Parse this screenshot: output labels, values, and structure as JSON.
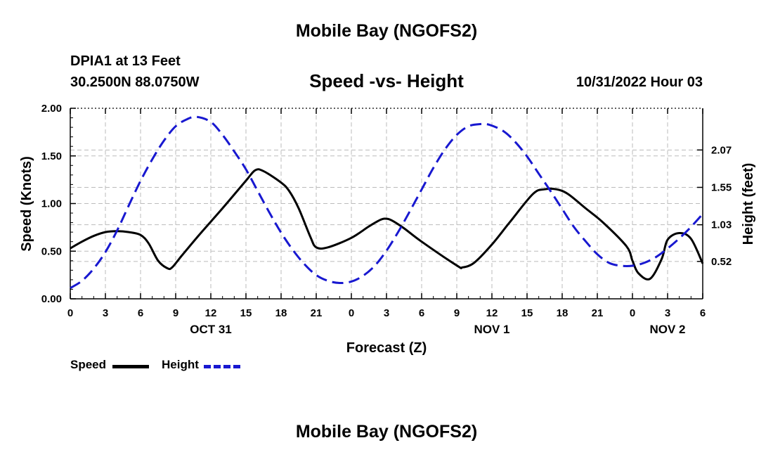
{
  "header": {
    "title": "Mobile Bay (NGOFS2)",
    "station": "DPIA1 at 13 Feet",
    "coords": "30.2500N  88.0750W",
    "chart_title": "Speed -vs- Height",
    "timestamp": "10/31/2022 Hour 03"
  },
  "footer": {
    "title": "Mobile Bay (NGOFS2)"
  },
  "legend": {
    "speed_label": "Speed",
    "height_label": "Height"
  },
  "colors": {
    "speed": "#000000",
    "height": "#1818d0",
    "grid": "#bbbbbb"
  },
  "chart_data": {
    "type": "line",
    "title": "Speed -vs- Height",
    "xlabel": "Forecast (Z)",
    "ylabel": "Speed (Knots)",
    "y2label": "Height (feet)",
    "xlim": [
      0,
      54
    ],
    "ylim": [
      0,
      2.0
    ],
    "y2lim": [
      0.0,
      2.65
    ],
    "x_ticks": [
      0,
      3,
      6,
      9,
      12,
      15,
      18,
      21,
      24,
      27,
      30,
      33,
      36,
      39,
      42,
      45,
      48,
      51,
      54
    ],
    "x_tick_labels": [
      "0",
      "3",
      "6",
      "9",
      "12",
      "15",
      "18",
      "21",
      "0",
      "3",
      "6",
      "9",
      "12",
      "15",
      "18",
      "21",
      "0",
      "3",
      "6"
    ],
    "date_labels": [
      {
        "x": 12,
        "label": "OCT 31"
      },
      {
        "x": 36,
        "label": "NOV 1"
      },
      {
        "x": 51,
        "label": "NOV 2"
      }
    ],
    "y_ticks": [
      0,
      0.5,
      1.0,
      1.5,
      2.0
    ],
    "y_tick_labels": [
      "0.00",
      "0.50",
      "1.00",
      "1.50",
      "2.00"
    ],
    "y2_ticks": [
      0.52,
      1.03,
      1.55,
      2.07
    ],
    "y2_tick_labels": [
      "0.52",
      "1.03",
      "1.55",
      "2.07"
    ],
    "grid": true,
    "series": [
      {
        "name": "Speed",
        "axis": "left",
        "x": [
          0,
          1,
          2,
          3,
          4,
          5,
          6,
          6.7,
          7.5,
          8.3,
          8.7,
          9.5,
          11,
          13,
          15,
          15.8,
          16.5,
          18,
          18.7,
          19.5,
          20.5,
          21,
          22,
          24,
          25.5,
          26.5,
          27,
          27.5,
          28.5,
          30,
          33,
          33.5,
          34.5,
          36,
          37.5,
          39.5,
          40.5,
          41.5,
          42.5,
          44,
          45.5,
          47.5,
          48,
          48.5,
          49.5,
          50.5,
          51,
          52,
          53,
          54
        ],
        "y": [
          0.53,
          0.6,
          0.66,
          0.7,
          0.71,
          0.7,
          0.67,
          0.58,
          0.4,
          0.32,
          0.33,
          0.45,
          0.67,
          0.95,
          1.24,
          1.35,
          1.34,
          1.22,
          1.13,
          0.95,
          0.65,
          0.54,
          0.54,
          0.64,
          0.76,
          0.83,
          0.84,
          0.82,
          0.74,
          0.6,
          0.35,
          0.33,
          0.38,
          0.57,
          0.8,
          1.1,
          1.15,
          1.15,
          1.1,
          0.95,
          0.8,
          0.55,
          0.4,
          0.27,
          0.21,
          0.42,
          0.62,
          0.69,
          0.63,
          0.37
        ]
      },
      {
        "name": "Height",
        "axis": "right",
        "x": [
          0,
          1,
          2,
          3,
          4,
          5,
          6,
          7,
          8,
          9,
          10,
          10.8,
          12,
          13,
          14,
          15,
          16,
          17,
          18,
          19,
          20,
          21,
          22,
          23,
          24,
          25,
          26,
          27,
          28,
          29,
          30,
          31,
          32,
          33,
          34,
          35,
          35.8,
          37,
          38,
          39,
          40,
          41,
          42,
          43,
          44,
          45,
          46,
          47,
          48,
          49,
          50,
          51,
          52,
          53,
          54
        ],
        "y": [
          0.15,
          0.25,
          0.42,
          0.65,
          0.95,
          1.3,
          1.64,
          1.94,
          2.2,
          2.4,
          2.5,
          2.53,
          2.46,
          2.28,
          2.05,
          1.8,
          1.5,
          1.2,
          0.92,
          0.68,
          0.48,
          0.33,
          0.25,
          0.22,
          0.24,
          0.32,
          0.46,
          0.67,
          0.93,
          1.22,
          1.52,
          1.82,
          2.08,
          2.28,
          2.4,
          2.43,
          2.42,
          2.33,
          2.18,
          1.98,
          1.74,
          1.5,
          1.25,
          1.0,
          0.8,
          0.62,
          0.5,
          0.46,
          0.46,
          0.5,
          0.58,
          0.7,
          0.84,
          1.0,
          1.18
        ]
      }
    ]
  }
}
